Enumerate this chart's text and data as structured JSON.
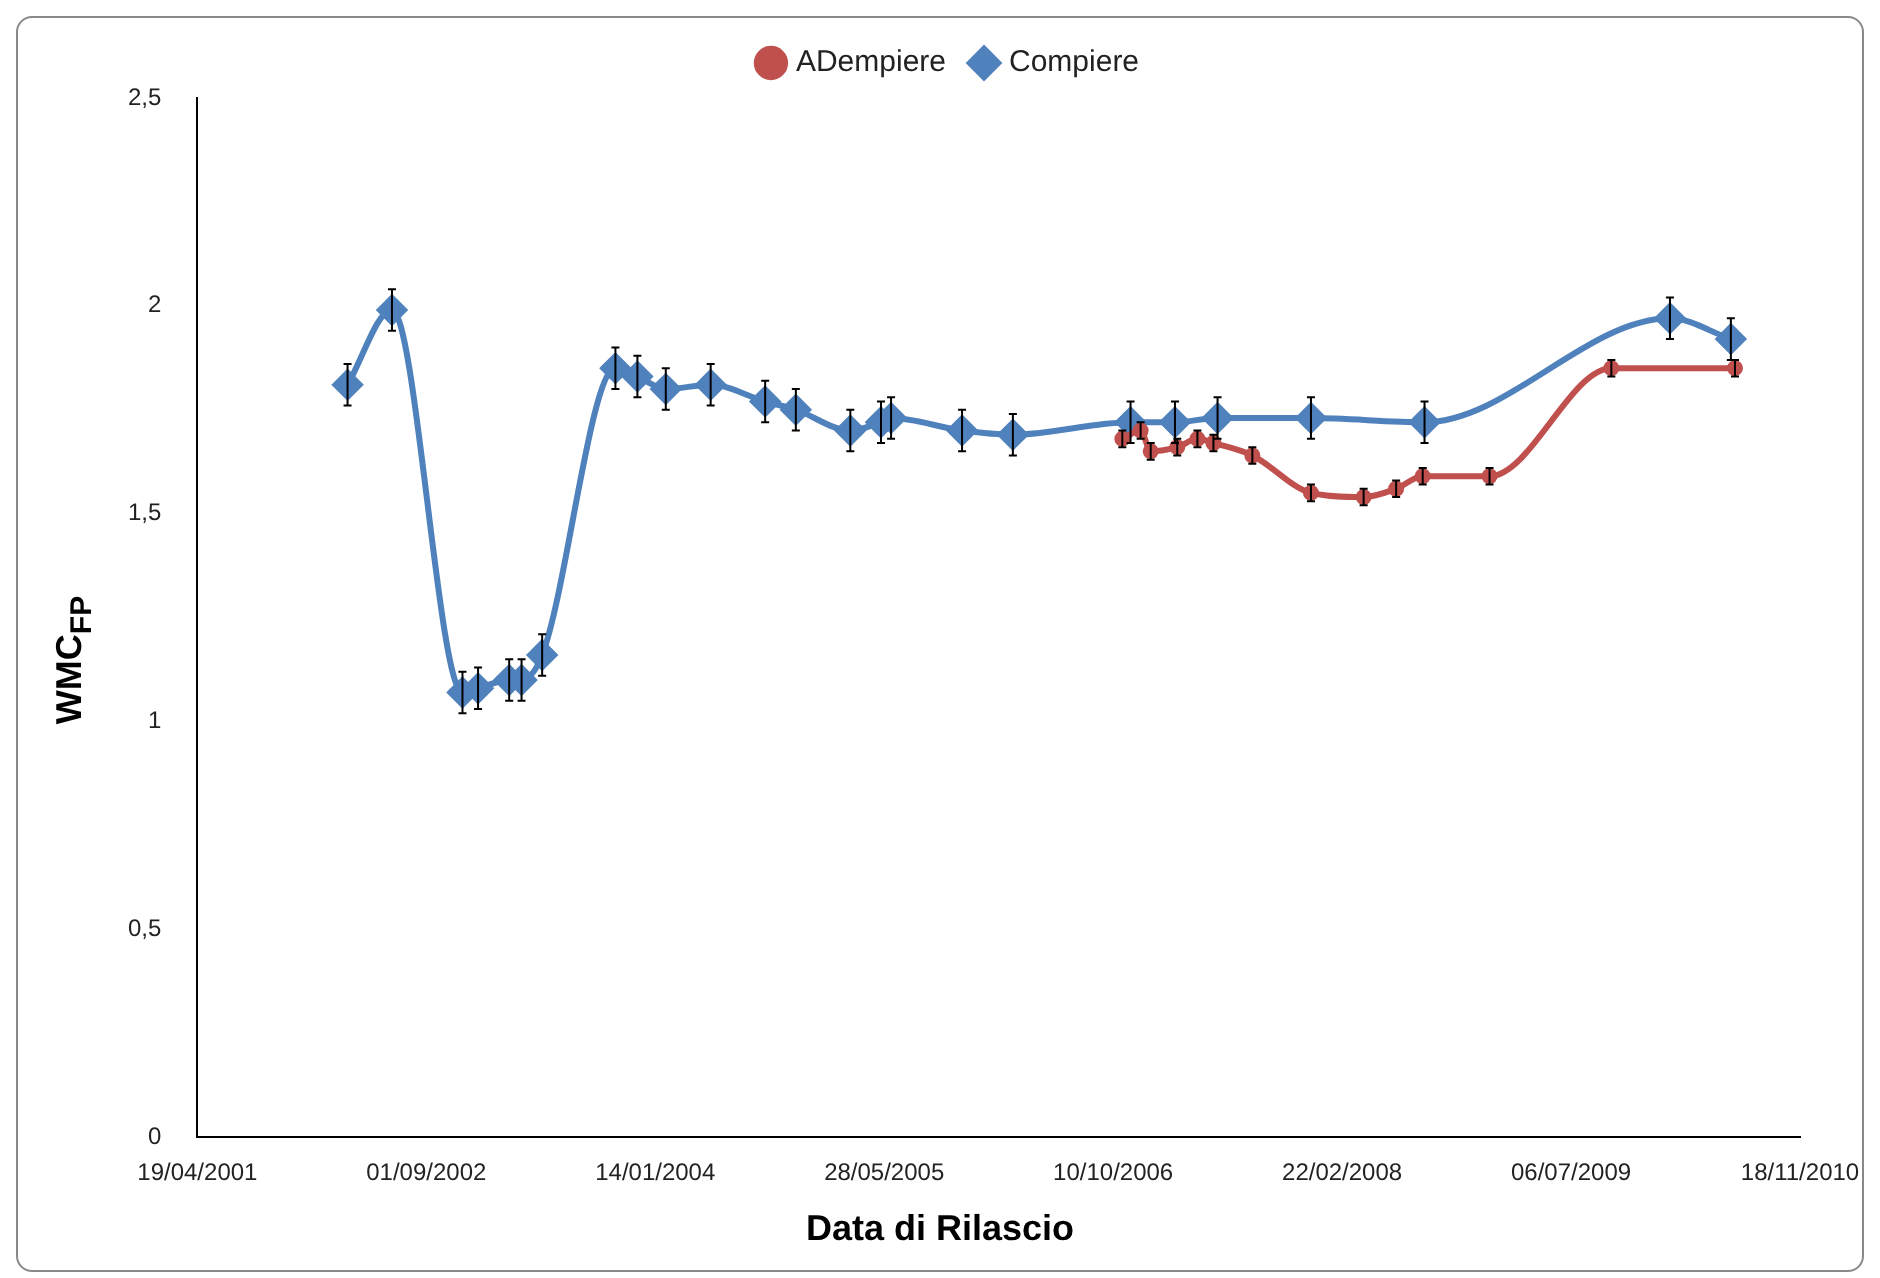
{
  "chart_data": {
    "type": "line",
    "xlabel": "Data di Rilascio",
    "ylabel": "WMC$_{FP}$",
    "xlim": [
      "2001-04-19",
      "2010-11-18"
    ],
    "xticks": [
      {
        "value": "2001-04-19",
        "label": "19/04/2001"
      },
      {
        "value": "2002-09-01",
        "label": "01/09/2002"
      },
      {
        "value": "2004-01-14",
        "label": "14/01/2004"
      },
      {
        "value": "2005-05-28",
        "label": "28/05/2005"
      },
      {
        "value": "2006-10-10",
        "label": "10/10/2006"
      },
      {
        "value": "2008-02-22",
        "label": "22/02/2008"
      },
      {
        "value": "2009-07-06",
        "label": "06/07/2009"
      },
      {
        "value": "2010-11-18",
        "label": "18/11/2010"
      }
    ],
    "ylim": [
      0,
      2.5
    ],
    "yticks": [
      0,
      {
        "value": 0.5,
        "label": "0,5"
      },
      1,
      {
        "value": 1.5,
        "label": "1,5"
      },
      2,
      {
        "value": 2.5,
        "label": "2,5"
      }
    ],
    "grid": false,
    "legend": "top",
    "line_style": "solid",
    "series": [
      {
        "name": "ADempiere",
        "color": "#c0504d",
        "marker": "circle",
        "x": [
          "2006-10-30",
          "2006-12-09",
          "2006-12-31",
          "2007-02-27",
          "2007-04-12",
          "2007-05-17",
          "2007-08-10",
          "2007-12-16",
          "2008-04-09",
          "2008-06-19",
          "2008-08-16",
          "2009-01-09",
          "2009-10-02",
          "2010-06-29"
        ],
        "values": [
          1.68,
          1.7,
          1.65,
          1.66,
          1.68,
          1.67,
          1.64,
          1.55,
          1.54,
          1.56,
          1.59,
          1.59,
          1.85,
          1.85
        ],
        "errors": [
          0.02,
          0.02,
          0.02,
          0.02,
          0.02,
          0.02,
          0.02,
          0.02,
          0.02,
          0.02,
          0.02,
          0.02,
          0.02,
          0.02
        ]
      },
      {
        "name": "Compiere",
        "color": "#4f81bd",
        "marker": "diamond",
        "x": [
          "2002-03-13",
          "2002-06-18",
          "2002-11-19",
          "2002-12-23",
          "2003-03-01",
          "2003-03-28",
          "2003-05-12",
          "2003-10-19",
          "2003-12-06",
          "2004-02-06",
          "2004-05-14",
          "2004-09-10",
          "2004-11-16",
          "2005-03-15",
          "2005-05-21",
          "2005-06-12",
          "2005-11-14",
          "2006-03-05",
          "2006-11-17",
          "2007-02-22",
          "2007-05-26",
          "2007-12-16",
          "2008-08-20",
          "2010-02-07",
          "2010-06-20"
        ],
        "values": [
          1.81,
          1.99,
          1.07,
          1.08,
          1.1,
          1.1,
          1.16,
          1.85,
          1.83,
          1.8,
          1.81,
          1.77,
          1.75,
          1.7,
          1.72,
          1.73,
          1.7,
          1.69,
          1.72,
          1.72,
          1.73,
          1.73,
          1.72,
          1.97,
          1.92
        ],
        "errors": [
          0.05,
          0.05,
          0.05,
          0.05,
          0.05,
          0.05,
          0.05,
          0.05,
          0.05,
          0.05,
          0.05,
          0.05,
          0.05,
          0.05,
          0.05,
          0.05,
          0.05,
          0.05,
          0.05,
          0.05,
          0.05,
          0.05,
          0.05,
          0.05,
          0.05
        ]
      }
    ]
  }
}
